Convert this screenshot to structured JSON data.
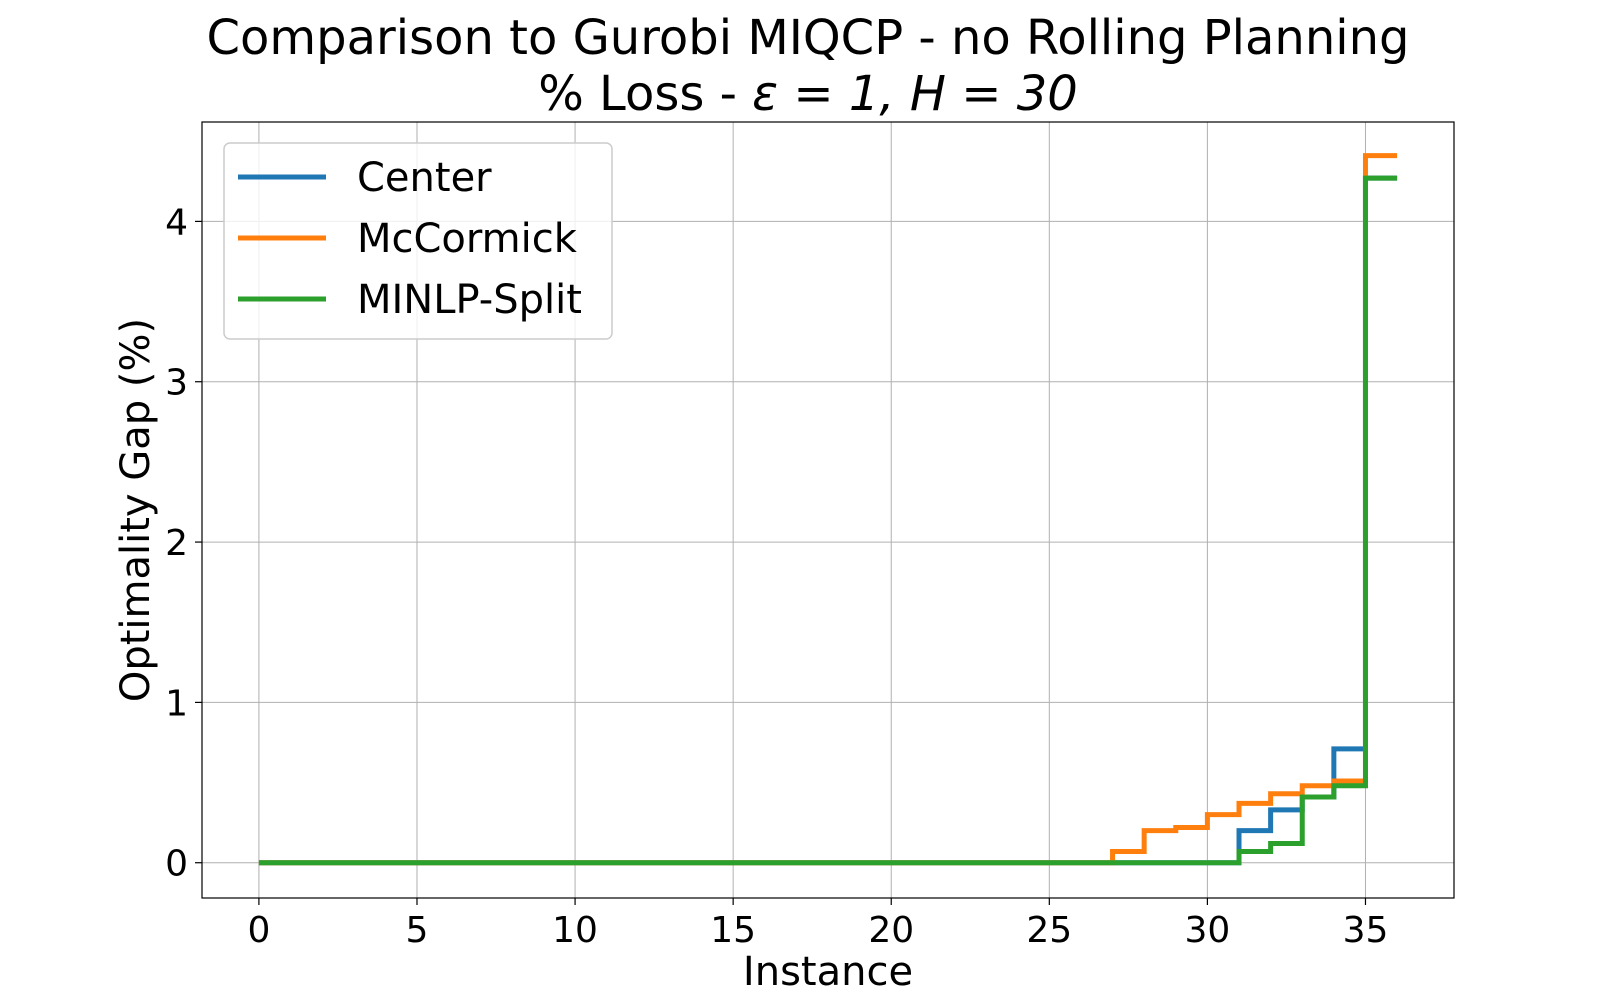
{
  "chart_data": {
    "type": "line",
    "step": "post",
    "title_line1": "Comparison to Gurobi MIQCP - no Rolling Planning",
    "title_line2_prefix": "% Loss - ",
    "title_line2_math": "ε = 1, H = 30",
    "xlabel": "Instance",
    "ylabel": "Optimality Gap (%)",
    "xlim": [
      -1.8,
      37.8
    ],
    "ylim": [
      -0.22,
      4.62
    ],
    "xticks": [
      0,
      5,
      10,
      15,
      20,
      25,
      30,
      35
    ],
    "yticks": [
      0,
      1,
      2,
      3,
      4
    ],
    "grid": true,
    "legend_position": "upper-left",
    "x": [
      0,
      1,
      2,
      3,
      4,
      5,
      6,
      7,
      8,
      9,
      10,
      11,
      12,
      13,
      14,
      15,
      16,
      17,
      18,
      19,
      20,
      21,
      22,
      23,
      24,
      25,
      26,
      27,
      28,
      29,
      30,
      31,
      32,
      33,
      34,
      35,
      36
    ],
    "series": [
      {
        "name": "Center",
        "color": "#1f77b4",
        "values": [
          0,
          0,
          0,
          0,
          0,
          0,
          0,
          0,
          0,
          0,
          0,
          0,
          0,
          0,
          0,
          0,
          0,
          0,
          0,
          0,
          0,
          0,
          0,
          0,
          0,
          0,
          0,
          0,
          0,
          0,
          0,
          0.2,
          0.33,
          0.41,
          0.71,
          4.27,
          4.27
        ]
      },
      {
        "name": "McCormick",
        "color": "#ff7f0e",
        "values": [
          0,
          0,
          0,
          0,
          0,
          0,
          0,
          0,
          0,
          0,
          0,
          0,
          0,
          0,
          0,
          0,
          0,
          0,
          0,
          0,
          0,
          0,
          0,
          0,
          0,
          0,
          0,
          0.07,
          0.2,
          0.22,
          0.3,
          0.37,
          0.43,
          0.48,
          0.51,
          4.41,
          4.41
        ]
      },
      {
        "name": "MINLP-Split",
        "color": "#2ca02c",
        "values": [
          0,
          0,
          0,
          0,
          0,
          0,
          0,
          0,
          0,
          0,
          0,
          0,
          0,
          0,
          0,
          0,
          0,
          0,
          0,
          0,
          0,
          0,
          0,
          0,
          0,
          0,
          0,
          0,
          0,
          0,
          0,
          0.07,
          0.12,
          0.41,
          0.48,
          4.27,
          4.27
        ]
      }
    ]
  }
}
